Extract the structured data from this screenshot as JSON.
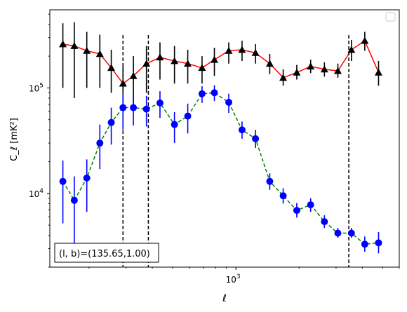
{
  "chart_data": {
    "type": "scatter",
    "xlabel": "ℓ",
    "ylabel": "C_ℓ [mK²]",
    "xscale": "log",
    "yscale": "log",
    "xlim": [
      130,
      6000
    ],
    "ylim": [
      2000,
      550000
    ],
    "x_tick_labels": [
      {
        "value": 1000,
        "label": "10",
        "exp": "3"
      }
    ],
    "y_tick_labels": [
      {
        "value": 10000,
        "label": "10",
        "exp": "4"
      },
      {
        "value": 100000,
        "label": "10",
        "exp": "5"
      }
    ],
    "annotation": {
      "text": "(l, b)=(135.65,1.00)"
    },
    "legend": {
      "position": "top-right",
      "entries": []
    },
    "vertical_lines": [
      {
        "x": 290,
        "style": "dashed"
      },
      {
        "x": 383,
        "style": "dashed"
      },
      {
        "x": 3450,
        "style": "dashed"
      }
    ],
    "grid": false,
    "series": [
      {
        "marker": "triangle",
        "color": "#000000",
        "line_color": "#ff0000",
        "line_style": "solid",
        "error_color": "#000000",
        "points": [
          {
            "x": 150,
            "y": 260000,
            "lo": 100000,
            "hi": 410000
          },
          {
            "x": 170,
            "y": 250000,
            "lo": 80000,
            "hi": 420000
          },
          {
            "x": 195,
            "y": 225000,
            "lo": 100000,
            "hi": 340000
          },
          {
            "x": 225,
            "y": 210000,
            "lo": 100000,
            "hi": 320000
          },
          {
            "x": 255,
            "y": 155000,
            "lo": 90000,
            "hi": 230000
          },
          {
            "x": 290,
            "y": 110000,
            "lo": 65000,
            "hi": 160000
          },
          {
            "x": 325,
            "y": 130000,
            "lo": 65000,
            "hi": 200000
          },
          {
            "x": 375,
            "y": 170000,
            "lo": 90000,
            "hi": 250000
          },
          {
            "x": 435,
            "y": 195000,
            "lo": 120000,
            "hi": 270000
          },
          {
            "x": 510,
            "y": 180000,
            "lo": 110000,
            "hi": 250000
          },
          {
            "x": 590,
            "y": 170000,
            "lo": 110000,
            "hi": 230000
          },
          {
            "x": 690,
            "y": 155000,
            "lo": 110000,
            "hi": 200000
          },
          {
            "x": 790,
            "y": 185000,
            "lo": 130000,
            "hi": 240000
          },
          {
            "x": 925,
            "y": 225000,
            "lo": 170000,
            "hi": 270000
          },
          {
            "x": 1070,
            "y": 230000,
            "lo": 180000,
            "hi": 280000
          },
          {
            "x": 1240,
            "y": 215000,
            "lo": 170000,
            "hi": 260000
          },
          {
            "x": 1450,
            "y": 170000,
            "lo": 135000,
            "hi": 210000
          },
          {
            "x": 1680,
            "y": 125000,
            "lo": 105000,
            "hi": 150000
          },
          {
            "x": 1950,
            "y": 140000,
            "lo": 120000,
            "hi": 165000
          },
          {
            "x": 2270,
            "y": 160000,
            "lo": 138000,
            "hi": 185000
          },
          {
            "x": 2640,
            "y": 150000,
            "lo": 128000,
            "hi": 175000
          },
          {
            "x": 3060,
            "y": 145000,
            "lo": 125000,
            "hi": 170000
          },
          {
            "x": 3550,
            "y": 230000,
            "lo": 180000,
            "hi": 285000
          },
          {
            "x": 4110,
            "y": 280000,
            "lo": 225000,
            "hi": 340000
          },
          {
            "x": 4780,
            "y": 140000,
            "lo": 105000,
            "hi": 180000
          }
        ]
      },
      {
        "marker": "circle",
        "color": "#0000ff",
        "line_color": "#008000",
        "line_style": "dashed",
        "error_color": "#0000ff",
        "points": [
          {
            "x": 150,
            "y": 13000,
            "lo": 5200,
            "hi": 20500
          },
          {
            "x": 170,
            "y": 8600,
            "lo": 2800,
            "hi": 14500
          },
          {
            "x": 195,
            "y": 14000,
            "lo": 6700,
            "hi": 21000
          },
          {
            "x": 225,
            "y": 30000,
            "lo": 17000,
            "hi": 45000
          },
          {
            "x": 255,
            "y": 47000,
            "lo": 29000,
            "hi": 65000
          },
          {
            "x": 290,
            "y": 65000,
            "lo": 40000,
            "hi": 90000
          },
          {
            "x": 325,
            "y": 65000,
            "lo": 44000,
            "hi": 88000
          },
          {
            "x": 375,
            "y": 63000,
            "lo": 43000,
            "hi": 84000
          },
          {
            "x": 435,
            "y": 72000,
            "lo": 52000,
            "hi": 93000
          },
          {
            "x": 510,
            "y": 45000,
            "lo": 30000,
            "hi": 59000
          },
          {
            "x": 590,
            "y": 54000,
            "lo": 37000,
            "hi": 71000
          },
          {
            "x": 690,
            "y": 88000,
            "lo": 72000,
            "hi": 104000
          },
          {
            "x": 790,
            "y": 90000,
            "lo": 75000,
            "hi": 106000
          },
          {
            "x": 925,
            "y": 73000,
            "lo": 58000,
            "hi": 88000
          },
          {
            "x": 1070,
            "y": 40000,
            "lo": 33000,
            "hi": 48000
          },
          {
            "x": 1240,
            "y": 33000,
            "lo": 27000,
            "hi": 40000
          },
          {
            "x": 1450,
            "y": 13000,
            "lo": 10800,
            "hi": 15500
          },
          {
            "x": 1680,
            "y": 9500,
            "lo": 8000,
            "hi": 11200
          },
          {
            "x": 1950,
            "y": 6900,
            "lo": 5900,
            "hi": 8100
          },
          {
            "x": 2270,
            "y": 7800,
            "lo": 6700,
            "hi": 9000
          },
          {
            "x": 2640,
            "y": 5400,
            "lo": 4700,
            "hi": 6200
          },
          {
            "x": 3060,
            "y": 4200,
            "lo": 3800,
            "hi": 4700
          },
          {
            "x": 3550,
            "y": 4200,
            "lo": 3800,
            "hi": 4700
          },
          {
            "x": 4110,
            "y": 3300,
            "lo": 2800,
            "hi": 3900
          },
          {
            "x": 4780,
            "y": 3400,
            "lo": 2700,
            "hi": 4300
          }
        ]
      }
    ]
  }
}
